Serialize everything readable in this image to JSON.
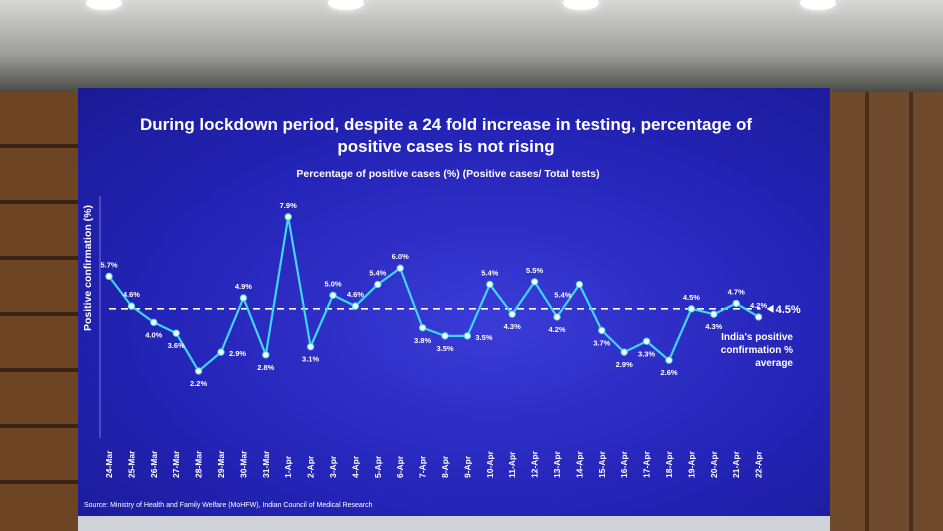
{
  "slide": {
    "title_line1": "During lockdown period, despite a 24 fold increase in testing, percentage of",
    "title_line2_normal": "positive cases ",
    "title_line2_emphasis": "is not rising",
    "source": "Source: Ministry of Health and Family Welfare (MoHFW), Indian Council of Medical Research"
  },
  "colors": {
    "background": "#2424b8",
    "line": "#3fd6f0",
    "text": "#ffffff",
    "emphasis": "#ffffff"
  },
  "chart_data": {
    "type": "line",
    "title": "Percentage of positive cases (%) (Positive cases/ Total tests)",
    "xlabel": "",
    "ylabel": "Positive confirmation (%)",
    "ylim": [
      1.5,
      8.3
    ],
    "grid": false,
    "categories": [
      "24-Mar",
      "25-Mar",
      "26-Mar",
      "27-Mar",
      "28-Mar",
      "29-Mar",
      "30-Mar",
      "31-Mar",
      "1-Apr",
      "2-Apr",
      "3-Apr",
      "4-Apr",
      "5-Apr",
      "6-Apr",
      "7-Apr",
      "8-Apr",
      "9-Apr",
      "10-Apr",
      "11-Apr",
      "12-Apr",
      "13-Apr",
      "14-Apr",
      "15-Apr",
      "16-Apr",
      "17-Apr",
      "18-Apr",
      "19-Apr",
      "20-Apr",
      "21-Apr",
      "22-Apr"
    ],
    "values": [
      5.7,
      4.6,
      4.0,
      3.6,
      2.2,
      2.9,
      4.9,
      2.8,
      7.9,
      3.1,
      5.0,
      4.6,
      5.4,
      6.0,
      3.8,
      3.5,
      3.5,
      5.4,
      4.3,
      5.5,
      4.2,
      5.4,
      3.7,
      2.9,
      3.3,
      2.6,
      4.5,
      4.3,
      4.7,
      4.2
    ],
    "data_labels": [
      "5.7%",
      "4.6%",
      "4.0%",
      "3.6%",
      "2.2%",
      "2.9%",
      "4.9%",
      "2.8%",
      "7.9%",
      "3.1%",
      "5.0%",
      "4.6%",
      "5.4%",
      "6.0%",
      "3.8%",
      "3.5%",
      "3.5%",
      "5.4%",
      "4.3%",
      "5.5%",
      "4.2%",
      "5.4%",
      "3.7%",
      "2.9%",
      "3.3%",
      "2.6%",
      "4.5%",
      "4.3%",
      "4.7%",
      "4.2%"
    ],
    "label_position": [
      "above",
      "above",
      "below",
      "below",
      "below",
      "right",
      "above",
      "below",
      "above",
      "below",
      "above",
      "above",
      "above",
      "above",
      "below",
      "below",
      "right",
      "above",
      "below",
      "above",
      "below",
      "left",
      "below",
      "below",
      "below",
      "below",
      "above",
      "below",
      "above",
      "above"
    ],
    "average": {
      "value": 4.5,
      "label": "4.5%",
      "caption": [
        "India's positive",
        "confirmation %",
        "average"
      ]
    }
  }
}
